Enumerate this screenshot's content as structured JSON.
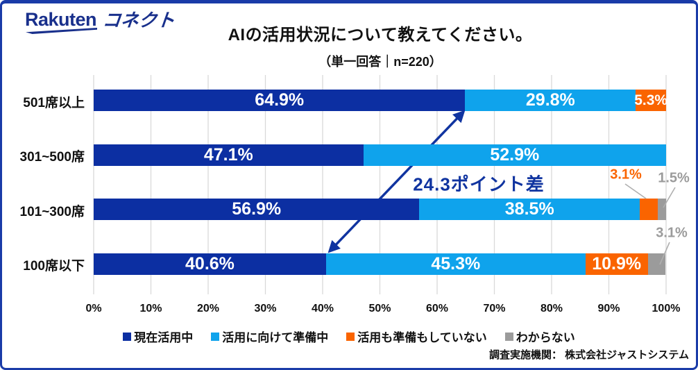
{
  "logo": {
    "brand": "Rakuten",
    "product": "コネクト"
  },
  "header": {
    "title": "AIの活用状況について教えてください。",
    "subtitle": "（単一回答｜n=220）"
  },
  "footer": {
    "source": "調査実施機関： 株式会社ジャストシステム"
  },
  "colors": {
    "navy_bar": "#0C2FA2",
    "light_blue_bar": "#0FA3EC",
    "orange_bar": "#FA6400",
    "gray_bar": "#9B9B9B",
    "accent": "#1034A0",
    "logo": "#19308C",
    "border": "#1A3BA8",
    "gridline": "#D9D9D9",
    "leader_line": "#AFAFAF",
    "bar_label": "#FFFFFF",
    "text": "#111111"
  },
  "chart_data": {
    "type": "bar",
    "stacked": true,
    "horizontal": true,
    "title": "AIの活用状況について教えてください。",
    "subtitle": "（単一回答｜n=220）",
    "n": 220,
    "categories": [
      "501席以上",
      "301~500席",
      "101~300席",
      "100席以下"
    ],
    "series": [
      {
        "name": "現在活用中",
        "color": "#0C2FA2",
        "values": [
          64.9,
          47.1,
          56.9,
          40.6
        ]
      },
      {
        "name": "活用に向けて準備中",
        "color": "#0FA3EC",
        "values": [
          29.8,
          52.9,
          38.5,
          45.3
        ]
      },
      {
        "name": "活用も準備もしていない",
        "color": "#FA6400",
        "values": [
          5.3,
          0,
          3.1,
          10.9
        ]
      },
      {
        "name": "わからない",
        "color": "#9B9B9B",
        "values": [
          0,
          0,
          1.5,
          3.1
        ]
      }
    ],
    "x_ticks": [
      "0%",
      "10%",
      "20%",
      "30%",
      "40%",
      "50%",
      "60%",
      "70%",
      "80%",
      "90%",
      "100%"
    ],
    "xlim": [
      0,
      100
    ],
    "grid": true,
    "legend_position": "bottom",
    "annotation": "24.3ポイント差",
    "callouts": [
      {
        "category": "101~300席",
        "series": "活用も準備もしていない",
        "text": "3.1%"
      },
      {
        "category": "101~300席",
        "series": "わからない",
        "text": "1.5%"
      },
      {
        "category": "100席以下",
        "series": "わからない",
        "text": "3.1%"
      }
    ]
  }
}
